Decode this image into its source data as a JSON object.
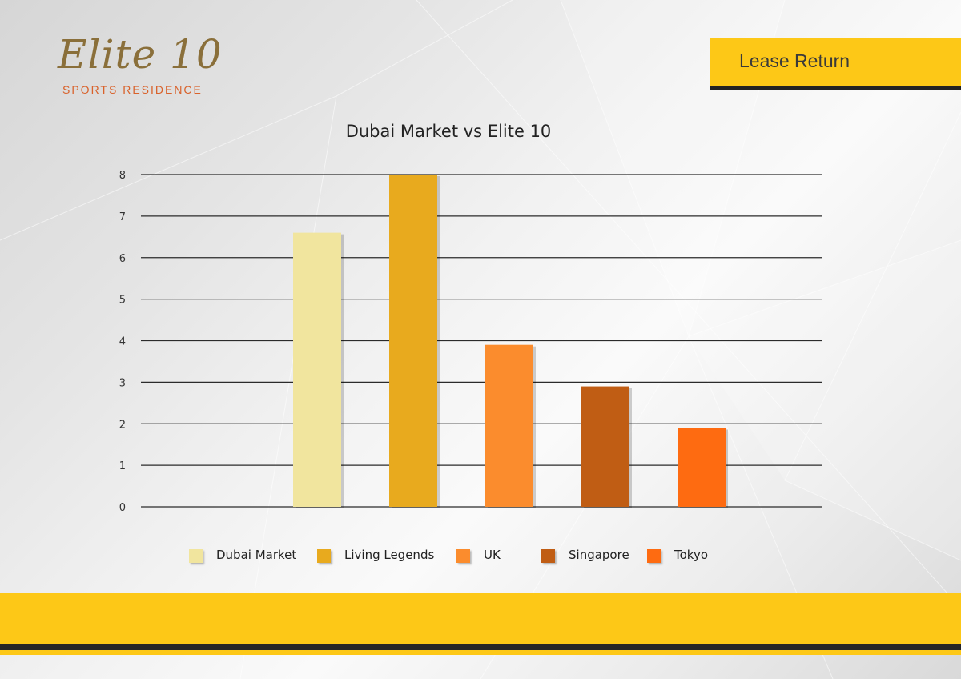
{
  "brand": {
    "logo_main": "Elite 10",
    "logo_sub": "SPORTS RESIDENCE"
  },
  "header": {
    "title": "Lease Return"
  },
  "colors": {
    "accent": "#fdc817",
    "dark_line": "#262626"
  },
  "chart_data": {
    "type": "bar",
    "title": "Dubai Market vs Elite 10",
    "xlabel": "",
    "ylabel": "",
    "ylim": [
      0,
      8
    ],
    "yticks": [
      0,
      1,
      2,
      3,
      4,
      5,
      6,
      7,
      8
    ],
    "grid": true,
    "legend_position": "bottom",
    "categories": [
      "Dubai Market",
      "Living Legends",
      "UK",
      "Singapore",
      "Tokyo"
    ],
    "values": [
      6.6,
      8,
      3.9,
      2.9,
      1.9
    ],
    "colors": [
      "#f1e59e",
      "#e8aa1e",
      "#fb8c2d",
      "#c05d14",
      "#fe6b11"
    ]
  },
  "legend": {
    "items": [
      {
        "label": "Dubai Market",
        "color": "#f1e59e"
      },
      {
        "label": "Living Legends",
        "color": "#e8aa1e"
      },
      {
        "label": "UK",
        "color": "#fb8c2d"
      },
      {
        "label": "Singapore",
        "color": "#c05d14"
      },
      {
        "label": "Tokyo",
        "color": "#fe6b11"
      }
    ]
  }
}
